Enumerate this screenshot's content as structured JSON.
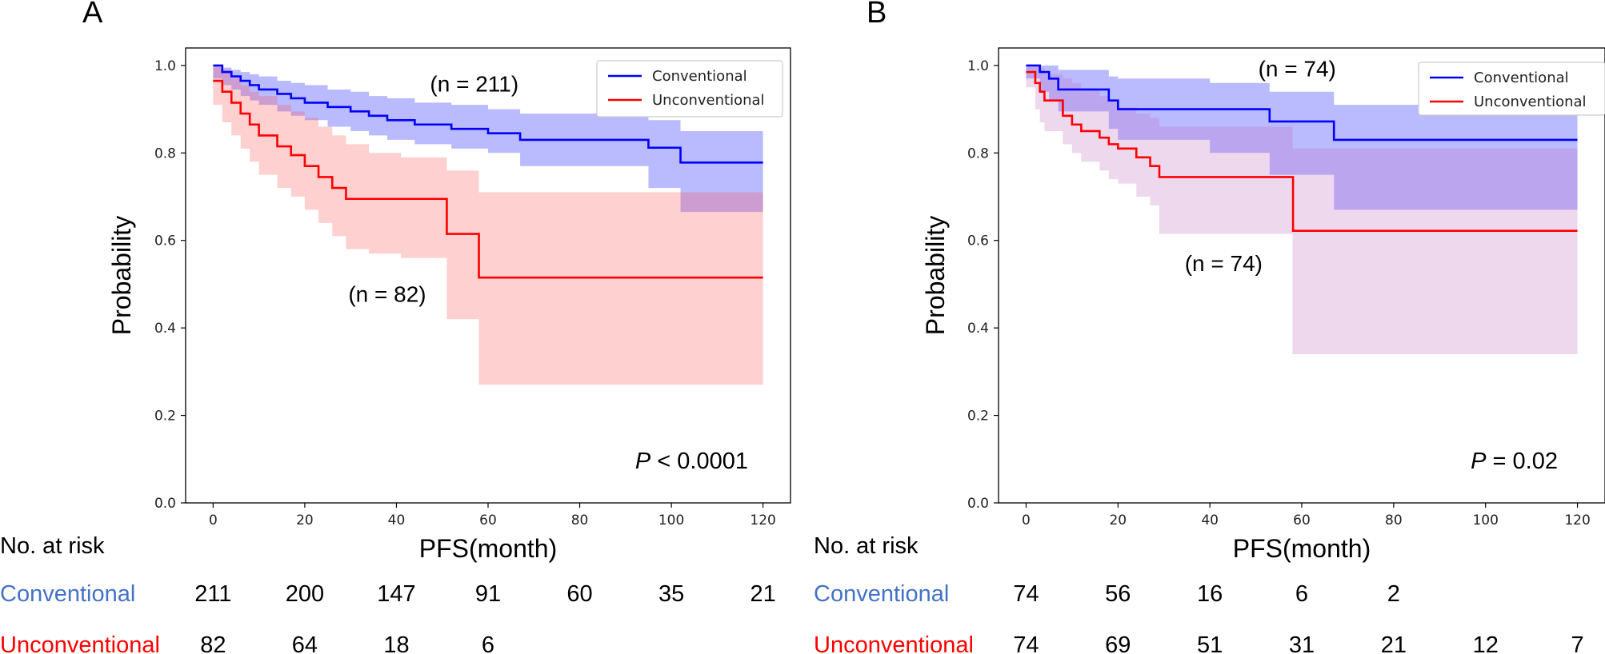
{
  "chart_data": [
    {
      "type": "line",
      "subtype": "kaplan-meier",
      "panel_label": "A",
      "xlabel": "PFS(month)",
      "ylabel": "Probability",
      "xlim": [
        -6,
        126
      ],
      "ylim": [
        0,
        1.04
      ],
      "x_ticks": [
        "0",
        "20",
        "40",
        "60",
        "80",
        "100",
        "120"
      ],
      "y_ticks": [
        "0.0",
        "0.2",
        "0.4",
        "0.6",
        "0.8",
        "1.0"
      ],
      "legend_position": "top-right",
      "series": [
        {
          "name": "Conventional",
          "color": "#0000ff",
          "fill": "#0000ff",
          "steps": [
            [
              0,
              1.0
            ],
            [
              2,
              0.985
            ],
            [
              4,
              0.975
            ],
            [
              6,
              0.965
            ],
            [
              8,
              0.955
            ],
            [
              10,
              0.945
            ],
            [
              14,
              0.935
            ],
            [
              17,
              0.925
            ],
            [
              20,
              0.915
            ],
            [
              25,
              0.905
            ],
            [
              30,
              0.895
            ],
            [
              34,
              0.885
            ],
            [
              38,
              0.875
            ],
            [
              44,
              0.865
            ],
            [
              52,
              0.855
            ],
            [
              60,
              0.845
            ],
            [
              67,
              0.83
            ],
            [
              95,
              0.812
            ],
            [
              102,
              0.778
            ],
            [
              120,
              0.778
            ]
          ],
          "ci": [
            [
              0,
              1.0,
              0.97
            ],
            [
              2,
              0.995,
              0.955
            ],
            [
              4,
              0.99,
              0.945
            ],
            [
              6,
              0.985,
              0.93
            ],
            [
              8,
              0.98,
              0.92
            ],
            [
              10,
              0.975,
              0.91
            ],
            [
              14,
              0.965,
              0.895
            ],
            [
              17,
              0.96,
              0.885
            ],
            [
              20,
              0.955,
              0.875
            ],
            [
              25,
              0.945,
              0.86
            ],
            [
              30,
              0.94,
              0.85
            ],
            [
              34,
              0.93,
              0.84
            ],
            [
              38,
              0.925,
              0.83
            ],
            [
              44,
              0.915,
              0.82
            ],
            [
              52,
              0.91,
              0.81
            ],
            [
              60,
              0.9,
              0.8
            ],
            [
              67,
              0.89,
              0.77
            ],
            [
              95,
              0.875,
              0.72
            ],
            [
              102,
              0.85,
              0.665
            ],
            [
              120,
              0.85,
              0.665
            ]
          ]
        },
        {
          "name": "Unconventional",
          "color": "#ff0000",
          "fill": "#ff5050",
          "steps": [
            [
              0,
              0.965
            ],
            [
              2,
              0.94
            ],
            [
              4,
              0.915
            ],
            [
              6,
              0.89
            ],
            [
              8,
              0.865
            ],
            [
              10,
              0.84
            ],
            [
              14,
              0.815
            ],
            [
              17,
              0.795
            ],
            [
              20,
              0.77
            ],
            [
              23,
              0.745
            ],
            [
              26,
              0.72
            ],
            [
              29,
              0.695
            ],
            [
              51,
              0.615
            ],
            [
              58,
              0.515
            ],
            [
              120,
              0.515
            ]
          ],
          "ci": [
            [
              0,
              1.0,
              0.91
            ],
            [
              2,
              0.99,
              0.87
            ],
            [
              4,
              0.97,
              0.84
            ],
            [
              6,
              0.955,
              0.81
            ],
            [
              8,
              0.94,
              0.78
            ],
            [
              10,
              0.93,
              0.75
            ],
            [
              14,
              0.91,
              0.72
            ],
            [
              17,
              0.895,
              0.7
            ],
            [
              20,
              0.88,
              0.67
            ],
            [
              23,
              0.86,
              0.64
            ],
            [
              26,
              0.84,
              0.61
            ],
            [
              29,
              0.82,
              0.58
            ],
            [
              34,
              0.8,
              0.57
            ],
            [
              41,
              0.79,
              0.56
            ],
            [
              51,
              0.76,
              0.42
            ],
            [
              58,
              0.71,
              0.27
            ],
            [
              120,
              0.71,
              0.27
            ]
          ]
        }
      ],
      "annotations": [
        {
          "text": "(n = 211)",
          "x": 57,
          "y": 0.94
        },
        {
          "text": "(n = 82)",
          "x": 38,
          "y": 0.46
        }
      ],
      "p_value": {
        "italic": "P",
        "text": " < 0.0001"
      },
      "risk_table": {
        "header": "No. at risk",
        "rows": [
          {
            "label": "Conventional",
            "color": "#4472c4",
            "values": [
              "211",
              "200",
              "147",
              "91",
              "60",
              "35",
              "21"
            ]
          },
          {
            "label": "Unconventional",
            "color": "#ff0000",
            "values": [
              "82",
              "64",
              "18",
              "6",
              "",
              "",
              ""
            ]
          }
        ]
      }
    },
    {
      "type": "line",
      "subtype": "kaplan-meier",
      "panel_label": "B",
      "xlabel": "PFS(month)",
      "ylabel": "Probability",
      "xlim": [
        -6,
        126
      ],
      "ylim": [
        0,
        1.04
      ],
      "x_ticks": [
        "0",
        "20",
        "40",
        "60",
        "80",
        "100",
        "120"
      ],
      "y_ticks": [
        "0.0",
        "0.2",
        "0.4",
        "0.6",
        "0.8",
        "1.0"
      ],
      "legend_position": "top-right",
      "series": [
        {
          "name": "Conventional",
          "color": "#0000ff",
          "fill": "#0000ff",
          "steps": [
            [
              0,
              1.0
            ],
            [
              3,
              0.985
            ],
            [
              5,
              0.97
            ],
            [
              7,
              0.945
            ],
            [
              18,
              0.92
            ],
            [
              20,
              0.9
            ],
            [
              40,
              0.9
            ],
            [
              53,
              0.872
            ],
            [
              67,
              0.83
            ],
            [
              120,
              0.83
            ]
          ],
          "ci": [
            [
              0,
              1.0,
              0.97
            ],
            [
              3,
              1.0,
              0.94
            ],
            [
              5,
              1.0,
              0.92
            ],
            [
              7,
              0.99,
              0.895
            ],
            [
              18,
              0.975,
              0.855
            ],
            [
              20,
              0.97,
              0.83
            ],
            [
              40,
              0.96,
              0.8
            ],
            [
              53,
              0.94,
              0.75
            ],
            [
              67,
              0.91,
              0.67
            ],
            [
              120,
              0.91,
              0.67
            ]
          ]
        },
        {
          "name": "Unconventional",
          "color": "#ff0000",
          "fill": "#c070c0",
          "steps": [
            [
              0,
              0.985
            ],
            [
              2,
              0.96
            ],
            [
              3,
              0.94
            ],
            [
              4,
              0.92
            ],
            [
              8,
              0.885
            ],
            [
              10,
              0.865
            ],
            [
              12,
              0.85
            ],
            [
              16,
              0.835
            ],
            [
              18,
              0.82
            ],
            [
              20,
              0.81
            ],
            [
              24,
              0.79
            ],
            [
              27,
              0.77
            ],
            [
              29,
              0.745
            ],
            [
              58,
              0.745
            ],
            [
              58.1,
              0.622
            ],
            [
              120,
              0.622
            ]
          ],
          "ci": [
            [
              0,
              1.0,
              0.95
            ],
            [
              2,
              1.0,
              0.9
            ],
            [
              3,
              0.995,
              0.87
            ],
            [
              4,
              0.98,
              0.85
            ],
            [
              8,
              0.97,
              0.82
            ],
            [
              10,
              0.96,
              0.8
            ],
            [
              12,
              0.945,
              0.78
            ],
            [
              16,
              0.93,
              0.76
            ],
            [
              18,
              0.92,
              0.74
            ],
            [
              20,
              0.905,
              0.73
            ],
            [
              24,
              0.89,
              0.7
            ],
            [
              27,
              0.88,
              0.68
            ],
            [
              29,
              0.86,
              0.615
            ],
            [
              58,
              0.81,
              0.34
            ],
            [
              120,
              0.81,
              0.34
            ]
          ]
        }
      ],
      "annotations": [
        {
          "text": "(n = 74)",
          "x": 59,
          "y": 0.975
        },
        {
          "text": "(n = 74)",
          "x": 43,
          "y": 0.53
        }
      ],
      "p_value": {
        "italic": "P",
        "text": " = 0.02"
      },
      "risk_table": {
        "header": "No. at risk",
        "rows": [
          {
            "label": "Conventional",
            "color": "#4472c4",
            "values": [
              "74",
              "56",
              "16",
              "6",
              "2",
              "",
              ""
            ]
          },
          {
            "label": "Unconventional",
            "color": "#ff0000",
            "values": [
              "74",
              "69",
              "51",
              "31",
              "21",
              "12",
              "7"
            ]
          }
        ]
      }
    }
  ]
}
